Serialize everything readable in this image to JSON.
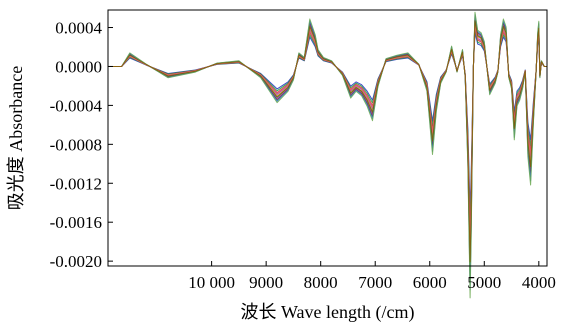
{
  "chart_data": {
    "type": "line",
    "title": "",
    "xlabel": "波长 Wave length (/cm)",
    "ylabel": "吸光度 Absorbance",
    "xlim": [
      11900,
      3850
    ],
    "ylim": [
      -0.00205,
      0.00058
    ],
    "x_reversed": true,
    "x_ticks": [
      {
        "value": 10000,
        "label": "10 000"
      },
      {
        "value": 9000,
        "label": "9000"
      },
      {
        "value": 8000,
        "label": "8000"
      },
      {
        "value": 7000,
        "label": "7000"
      },
      {
        "value": 6000,
        "label": "6000"
      },
      {
        "value": 5000,
        "label": "5000"
      },
      {
        "value": 4000,
        "label": "4000"
      }
    ],
    "y_ticks": [
      {
        "value": 0.0004,
        "label": "0.0004"
      },
      {
        "value": 0.0,
        "label": "0.0000"
      },
      {
        "value": -0.0004,
        "label": "-0.0004"
      },
      {
        "value": -0.0008,
        "label": "-0.0008"
      },
      {
        "value": -0.0012,
        "label": "-0.0012"
      },
      {
        "value": -0.0016,
        "label": "-0.0016"
      },
      {
        "value": -0.002,
        "label": "-0.0020"
      }
    ],
    "grid": false,
    "legend": "none",
    "series_colors": [
      "#1f2dbf",
      "#1a9e3a",
      "#d6262b",
      "#8a2be2",
      "#d4a017",
      "#00a3a3",
      "#c21e8c",
      "#444444",
      "#2f7fd6",
      "#6aa84f",
      "#e06666",
      "#7f6000"
    ],
    "series": [
      {
        "x": [
          11900,
          11650,
          11500,
          11200,
          10800,
          10300,
          9900,
          9500,
          9100,
          8800,
          8600,
          8500,
          8400,
          8300,
          8200,
          8150,
          8100,
          8050,
          7950,
          7800,
          7600,
          7450,
          7350,
          7250,
          7150,
          7050,
          6950,
          6800,
          6600,
          6400,
          6200,
          6050,
          5950,
          5880,
          5800,
          5700,
          5600,
          5500,
          5400,
          5350,
          5300,
          5260,
          5240,
          5200,
          5170,
          5120,
          5060,
          5000,
          4900,
          4800,
          4750,
          4700,
          4650,
          4600,
          4550,
          4500,
          4450,
          4400,
          4350,
          4300,
          4250,
          4200,
          4150,
          4100,
          4050,
          4020,
          4000,
          3980,
          3950,
          3900,
          3850
        ],
        "y": [
          0.0,
          0.0,
          0.00012,
          2e-05,
          -0.0001,
          -5e-05,
          3e-05,
          5e-05,
          -0.0001,
          -0.00032,
          -0.00022,
          -0.00012,
          0.00012,
          8e-05,
          0.00042,
          0.00035,
          0.00028,
          0.00015,
          8e-05,
          5e-05,
          -8e-05,
          -0.00028,
          -0.00022,
          -0.00026,
          -0.00035,
          -0.00048,
          -0.00018,
          7e-05,
          0.0001,
          0.00012,
          2e-05,
          -0.00022,
          -0.00078,
          -0.0004,
          -0.00015,
          -5e-05,
          0.00018,
          -5e-05,
          0.00015,
          -0.0001,
          -0.0009,
          -0.00205,
          -0.0015,
          0.0,
          0.00048,
          0.00032,
          0.0003,
          0.00022,
          -0.00025,
          -0.00015,
          -5e-05,
          0.00028,
          0.00042,
          0.00035,
          -0.0001,
          -0.0002,
          -0.00065,
          -0.00035,
          -0.0003,
          -0.0002,
          -5e-05,
          -0.0008,
          -0.00105,
          -0.0005,
          -5e-05,
          0.0003,
          0.0004,
          -0.0001,
          5e-05,
          0.0,
          0.0
        ]
      }
    ]
  }
}
